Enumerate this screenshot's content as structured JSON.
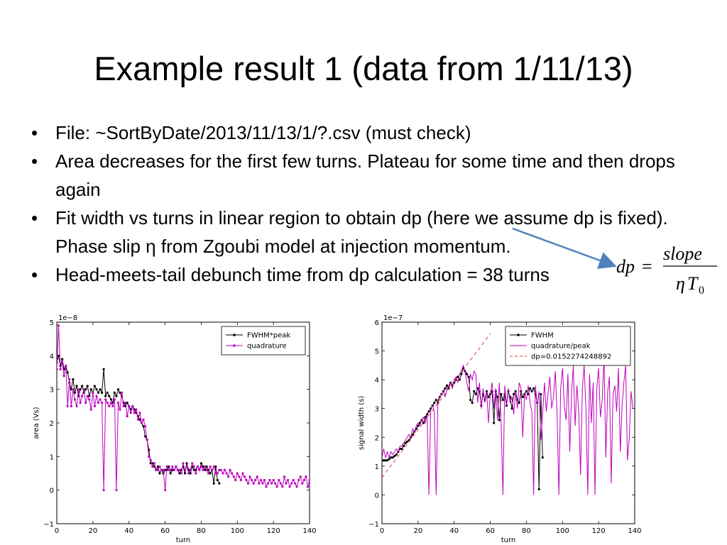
{
  "slide": {
    "title": "Example result 1 (data from 1/11/13)",
    "bullets": [
      "File: ~SortByDate/2013/11/13/1/?.csv (must check)",
      "Area decreases for the first few turns. Plateau for some time and then drops again",
      "Fit width vs turns in linear region to obtain dp (here we assume dp is fixed). Phase slip η from Zgoubi model at injection momentum.",
      "Head-meets-tail debunch time from dp calculation = 38 turns"
    ],
    "formula": {
      "lhs": "dp",
      "equals": "=",
      "numerator": "slope",
      "eta": "η",
      "T": "T",
      "subscript": "0"
    },
    "arrow_color": "#4f81bd"
  },
  "chart_data": [
    {
      "type": "line",
      "xlabel": "turn",
      "ylabel": "area (Vs)",
      "offset_text": "1e−8",
      "xlim": [
        0,
        140
      ],
      "ylim": [
        -1,
        5
      ],
      "xticks": [
        0,
        20,
        40,
        60,
        80,
        100,
        120,
        140
      ],
      "yticks": [
        -1,
        0,
        1,
        2,
        3,
        4,
        5
      ],
      "xtick_labels": [
        "0",
        "20",
        "40",
        "60",
        "80",
        "100",
        "120",
        "140"
      ],
      "ytick_labels": [
        "−1",
        "0",
        "1",
        "2",
        "3",
        "4",
        "5"
      ],
      "grid": false,
      "legend_position": "top-right",
      "series": [
        {
          "name": "FWHM*peak",
          "color": "#000000",
          "marker": true,
          "x": [
            0,
            1,
            2,
            3,
            4,
            5,
            6,
            7,
            8,
            9,
            10,
            11,
            12,
            13,
            14,
            15,
            16,
            17,
            18,
            19,
            20,
            21,
            22,
            23,
            24,
            25,
            26,
            27,
            28,
            29,
            30,
            31,
            32,
            33,
            34,
            35,
            36,
            37,
            38,
            39,
            40,
            41,
            42,
            43,
            44,
            45,
            46,
            47,
            48,
            49,
            50,
            51,
            52,
            53,
            54,
            55,
            56,
            57,
            58,
            59,
            60,
            61,
            62,
            63,
            64,
            65,
            66,
            67,
            68,
            69,
            70,
            71,
            72,
            73,
            74,
            75,
            76,
            77,
            78,
            79,
            80,
            81,
            82,
            83,
            84,
            85,
            86,
            87,
            88,
            89,
            90
          ],
          "y": [
            3.8,
            4.0,
            3.7,
            3.9,
            3.6,
            3.7,
            3.5,
            3.2,
            3.0,
            3.3,
            2.9,
            3.1,
            2.8,
            3.0,
            3.1,
            2.9,
            3.0,
            3.1,
            2.8,
            3.0,
            2.9,
            3.1,
            3.0,
            2.9,
            3.0,
            2.9,
            3.6,
            2.8,
            2.9,
            2.8,
            2.7,
            2.6,
            2.9,
            2.8,
            3.0,
            2.9,
            2.8,
            2.6,
            2.5,
            2.6,
            2.5,
            2.4,
            2.5,
            2.4,
            2.3,
            2.2,
            2.1,
            2.0,
            1.9,
            1.6,
            1.5,
            1.2,
            0.8,
            0.8,
            0.7,
            0.6,
            0.7,
            0.5,
            0.6,
            0.5,
            0.6,
            0.6,
            0.7,
            0.5,
            0.6,
            0.6,
            0.7,
            0.6,
            0.5,
            0.6,
            0.7,
            0.5,
            0.8,
            0.6,
            0.5,
            0.7,
            0.6,
            0.6,
            0.7,
            0.6,
            0.8,
            0.7,
            0.6,
            0.7,
            0.6,
            0.5,
            0.6,
            0.2,
            0.7,
            0.3,
            0.2
          ]
        },
        {
          "name": "quadrature",
          "color": "#bf00bf",
          "marker": true,
          "x": [
            0,
            1,
            2,
            3,
            4,
            5,
            6,
            7,
            8,
            9,
            10,
            11,
            12,
            13,
            14,
            15,
            16,
            17,
            18,
            19,
            20,
            21,
            22,
            23,
            24,
            25,
            26,
            27,
            28,
            29,
            30,
            31,
            32,
            33,
            34,
            35,
            36,
            37,
            38,
            39,
            40,
            41,
            42,
            43,
            44,
            45,
            46,
            47,
            48,
            49,
            50,
            51,
            52,
            53,
            54,
            55,
            56,
            57,
            58,
            59,
            60,
            61,
            62,
            63,
            64,
            65,
            66,
            67,
            68,
            69,
            70,
            71,
            72,
            73,
            74,
            75,
            76,
            77,
            78,
            79,
            80,
            81,
            82,
            83,
            84,
            85,
            86,
            87,
            88,
            89,
            90,
            91,
            92,
            93,
            94,
            95,
            96,
            97,
            98,
            99,
            100,
            101,
            102,
            103,
            104,
            105,
            106,
            107,
            108,
            109,
            110,
            111,
            112,
            113,
            114,
            115,
            116,
            117,
            118,
            119,
            120,
            121,
            122,
            123,
            124,
            125,
            126,
            127,
            128,
            129,
            130,
            131,
            132,
            133,
            134,
            135,
            136,
            137,
            138,
            139,
            140
          ],
          "y": [
            3.6,
            4.9,
            3.6,
            3.8,
            3.4,
            3.7,
            2.5,
            3.3,
            2.5,
            3.0,
            2.7,
            2.5,
            3.0,
            2.6,
            2.8,
            3.0,
            2.6,
            2.8,
            2.7,
            2.4,
            2.9,
            2.5,
            2.8,
            2.6,
            2.7,
            2.6,
            0.0,
            2.7,
            2.6,
            2.5,
            2.6,
            2.5,
            2.7,
            0.0,
            2.6,
            2.4,
            2.9,
            2.5,
            2.6,
            2.2,
            2.5,
            2.3,
            2.5,
            2.3,
            2.4,
            2.1,
            2.3,
            2.0,
            2.1,
            1.9,
            1.5,
            1.0,
            0.9,
            0.7,
            0.8,
            0.6,
            0.6,
            0.7,
            0.6,
            0.6,
            0.0,
            0.7,
            0.6,
            0.6,
            0.7,
            0.6,
            0.7,
            0.6,
            0.6,
            0.5,
            0.8,
            0.6,
            0.7,
            0.5,
            0.6,
            0.8,
            0.7,
            0.5,
            0.7,
            0.6,
            0.7,
            0.6,
            0.7,
            0.6,
            0.5,
            0.7,
            0.6,
            0.7,
            0.5,
            0.5,
            0.6,
            0.6,
            0.5,
            0.6,
            0.5,
            0.4,
            0.6,
            0.5,
            0.4,
            0.3,
            0.5,
            0.4,
            0.3,
            0.5,
            0.4,
            0.3,
            0.2,
            0.4,
            0.3,
            0.2,
            0.3,
            0.4,
            0.2,
            0.3,
            0.2,
            0.3,
            0.1,
            0.2,
            0.3,
            0.2,
            0.3,
            0.2,
            0.1,
            0.3,
            0.2,
            0.1,
            0.4,
            0.2,
            0.3,
            0.1,
            0.2,
            0.3,
            0.2,
            0.1,
            0.3,
            0.4,
            0.2,
            0.3,
            0.4,
            0.1,
            0.3
          ]
        }
      ]
    },
    {
      "type": "line",
      "xlabel": "turn",
      "ylabel": "signal width (s)",
      "offset_text": "1e−7",
      "xlim": [
        0,
        140
      ],
      "ylim": [
        -1,
        6
      ],
      "xticks": [
        0,
        20,
        40,
        60,
        80,
        100,
        120,
        140
      ],
      "yticks": [
        -1,
        0,
        1,
        2,
        3,
        4,
        5,
        6
      ],
      "xtick_labels": [
        "0",
        "20",
        "40",
        "60",
        "80",
        "100",
        "120",
        "140"
      ],
      "ytick_labels": [
        "−1",
        "0",
        "1",
        "2",
        "3",
        "4",
        "5",
        "6"
      ],
      "grid": false,
      "legend_position": "top-right",
      "series": [
        {
          "name": "FWHM",
          "color": "#000000",
          "marker": true,
          "x": [
            0,
            1,
            2,
            3,
            4,
            5,
            6,
            7,
            8,
            9,
            10,
            11,
            12,
            13,
            14,
            15,
            16,
            17,
            18,
            19,
            20,
            21,
            22,
            23,
            24,
            25,
            26,
            27,
            28,
            29,
            30,
            31,
            32,
            33,
            34,
            35,
            36,
            37,
            38,
            39,
            40,
            41,
            42,
            43,
            44,
            45,
            46,
            47,
            48,
            49,
            50,
            51,
            52,
            53,
            54,
            55,
            56,
            57,
            58,
            59,
            60,
            61,
            62,
            63,
            64,
            65,
            66,
            67,
            68,
            69,
            70,
            71,
            72,
            73,
            74,
            75,
            76,
            77,
            78,
            79,
            80,
            81,
            82,
            83,
            84,
            85,
            86,
            87,
            88,
            89
          ],
          "y": [
            1.2,
            1.2,
            1.2,
            1.2,
            1.25,
            1.3,
            1.3,
            1.35,
            1.4,
            1.5,
            1.6,
            1.6,
            1.7,
            1.8,
            1.85,
            1.9,
            2.0,
            2.1,
            2.2,
            2.3,
            2.4,
            2.5,
            2.6,
            2.5,
            2.7,
            2.8,
            2.9,
            3.0,
            3.1,
            3.2,
            3.3,
            3.2,
            3.4,
            3.5,
            3.6,
            3.7,
            3.8,
            3.7,
            3.9,
            3.8,
            3.9,
            4.0,
            4.1,
            4.0,
            4.2,
            4.4,
            4.3,
            4.2,
            4.1,
            3.3,
            3.2,
            3.6,
            3.5,
            3.7,
            3.6,
            3.1,
            3.5,
            3.3,
            3.6,
            3.4,
            3.5,
            3.6,
            2.5,
            3.6,
            3.4,
            2.6,
            3.5,
            3.3,
            3.5,
            3.1,
            3.6,
            3.4,
            3.0,
            3.5,
            3.6,
            3.3,
            3.2,
            3.6,
            3.4,
            3.5,
            3.6,
            3.5,
            3.7,
            3.6,
            3.7,
            3.5,
            3.2,
            0.2,
            3.5,
            1.3
          ]
        },
        {
          "name": "quadrature/peak",
          "color": "#bf00bf",
          "marker": false,
          "x": [
            0,
            1,
            2,
            3,
            4,
            5,
            6,
            7,
            8,
            9,
            10,
            11,
            12,
            13,
            14,
            15,
            16,
            17,
            18,
            19,
            20,
            21,
            22,
            23,
            24,
            25,
            26,
            27,
            28,
            29,
            30,
            31,
            32,
            33,
            34,
            35,
            36,
            37,
            38,
            39,
            40,
            41,
            42,
            43,
            44,
            45,
            46,
            47,
            48,
            49,
            50,
            51,
            52,
            53,
            54,
            55,
            56,
            57,
            58,
            59,
            60,
            61,
            62,
            63,
            64,
            65,
            66,
            67,
            68,
            69,
            70,
            71,
            72,
            73,
            74,
            75,
            76,
            77,
            78,
            79,
            80,
            81,
            82,
            83,
            84,
            85,
            86,
            87,
            88,
            89,
            90,
            91,
            92,
            93,
            94,
            95,
            96,
            97,
            98,
            99,
            100,
            101,
            102,
            103,
            104,
            105,
            106,
            107,
            108,
            109,
            110,
            111,
            112,
            113,
            114,
            115,
            116,
            117,
            118,
            119,
            120,
            121,
            122,
            123,
            124,
            125,
            126,
            127,
            128,
            129,
            130,
            131,
            132,
            133,
            134,
            135,
            136,
            137,
            138,
            139
          ],
          "y": [
            1.3,
            1.6,
            1.3,
            1.5,
            1.3,
            1.5,
            1.4,
            1.5,
            1.6,
            1.5,
            1.7,
            1.7,
            1.8,
            1.9,
            2.0,
            2.1,
            2.0,
            2.3,
            2.2,
            2.4,
            2.5,
            2.4,
            2.6,
            2.7,
            2.5,
            2.8,
            0.0,
            3.0,
            3.1,
            2.9,
            0.0,
            3.3,
            3.4,
            3.5,
            3.6,
            3.4,
            3.7,
            3.8,
            3.9,
            3.7,
            4.0,
            4.1,
            3.9,
            4.2,
            4.3,
            4.5,
            4.3,
            3.9,
            3.6,
            4.2,
            4.0,
            4.3,
            4.2,
            3.2,
            3.9,
            3.0,
            3.7,
            3.2,
            3.6,
            2.5,
            3.5,
            3.9,
            3.0,
            3.7,
            2.6,
            3.9,
            2.5,
            0.0,
            3.8,
            3.1,
            3.7,
            3.2,
            3.4,
            2.8,
            3.6,
            3.0,
            3.9,
            3.7,
            2.0,
            3.5,
            3.3,
            3.8,
            3.2,
            2.9,
            0.0,
            3.8,
            3.1,
            3.6,
            1.9,
            2.8,
            3.9,
            2.9,
            3.5,
            4.1,
            3.0,
            3.4,
            4.3,
            2.8,
            0.0,
            3.7,
            4.4,
            3.1,
            2.6,
            4.2,
            1.5,
            3.5,
            4.5,
            2.4,
            3.8,
            2.9,
            0.7,
            3.7,
            4.5,
            3.0,
            0.0,
            4.2,
            2.5,
            3.9,
            0.0,
            3.7,
            4.4,
            2.7,
            3.3,
            4.8,
            1.3,
            3.6,
            4.1,
            0.4,
            3.5,
            3.8,
            2.9,
            4.4,
            1.5,
            3.1,
            3.9,
            4.5,
            1.2,
            2.0,
            3.6,
            3.0
          ]
        },
        {
          "name": "dp=0.0152274248892",
          "color": "#e23b3b",
          "marker": false,
          "dashed": true,
          "x": [
            0,
            60
          ],
          "y": [
            0.6,
            5.6
          ]
        }
      ]
    }
  ]
}
